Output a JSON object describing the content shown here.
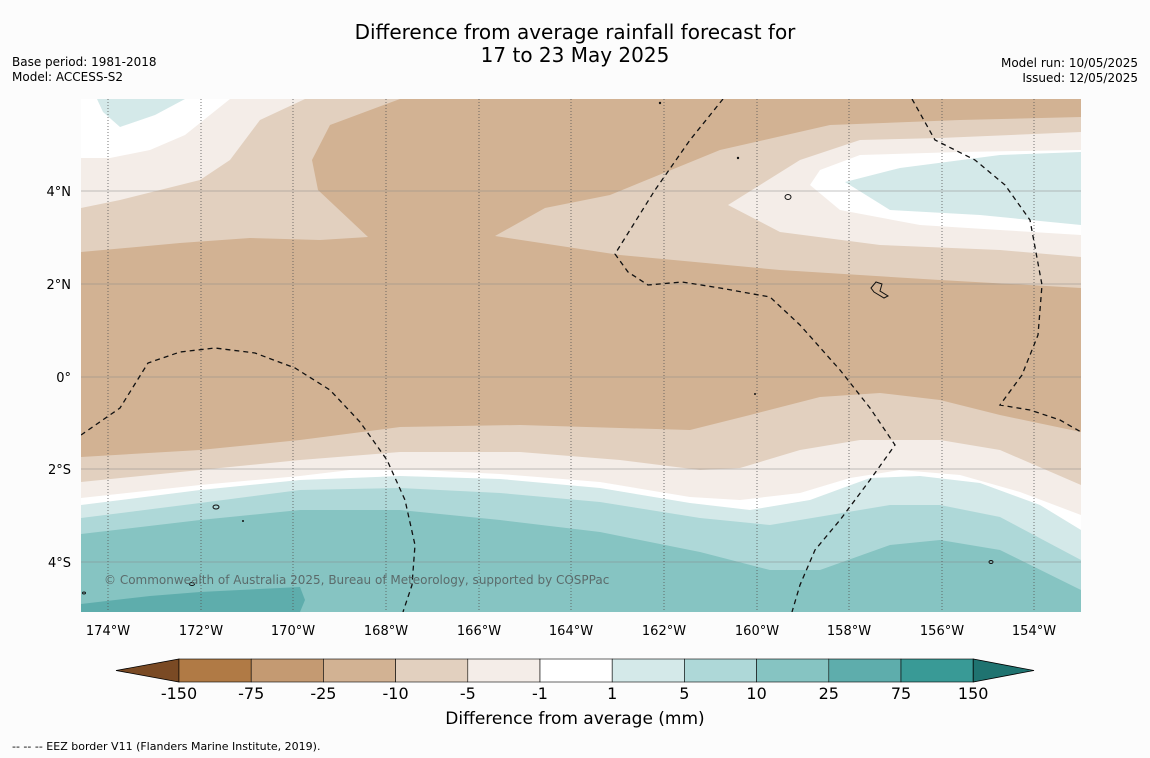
{
  "title": {
    "line1": "Difference from average rainfall forecast for",
    "line2": "17 to 23 May 2025"
  },
  "meta": {
    "base_period": "Base period: 1981-2018",
    "model": "Model: ACCESS-S2",
    "model_run": "Model run: 10/05/2025",
    "issued": "Issued: 12/05/2025"
  },
  "map": {
    "lat_ticks": [
      "4°N",
      "2°N",
      "0°",
      "2°S",
      "4°S"
    ],
    "lon_ticks": [
      "174°W",
      "172°W",
      "170°W",
      "168°W",
      "166°W",
      "164°W",
      "162°W",
      "160°W",
      "158°W",
      "156°W",
      "154°W"
    ],
    "copyright": "© Commonwealth of Australia 2025, Bureau of Meteorology, supported by COSPPac"
  },
  "colorbar": {
    "label": "Difference from average (mm)",
    "ticks": [
      "-150",
      "-75",
      "-25",
      "-10",
      "-5",
      "-1",
      "1",
      "5",
      "10",
      "25",
      "75",
      "150"
    ],
    "colors": [
      "#7a4a24",
      "#b07a45",
      "#c49a72",
      "#d2b293",
      "#e2d0bf",
      "#f4ede8",
      "#ffffff",
      "#d4e9e9",
      "#aed8d8",
      "#86c4c2",
      "#5eadac",
      "#399a96",
      "#1f7370"
    ]
  },
  "footnote": "--  --  -- EEZ border V11 (Flanders Marine Institute, 2019)."
}
